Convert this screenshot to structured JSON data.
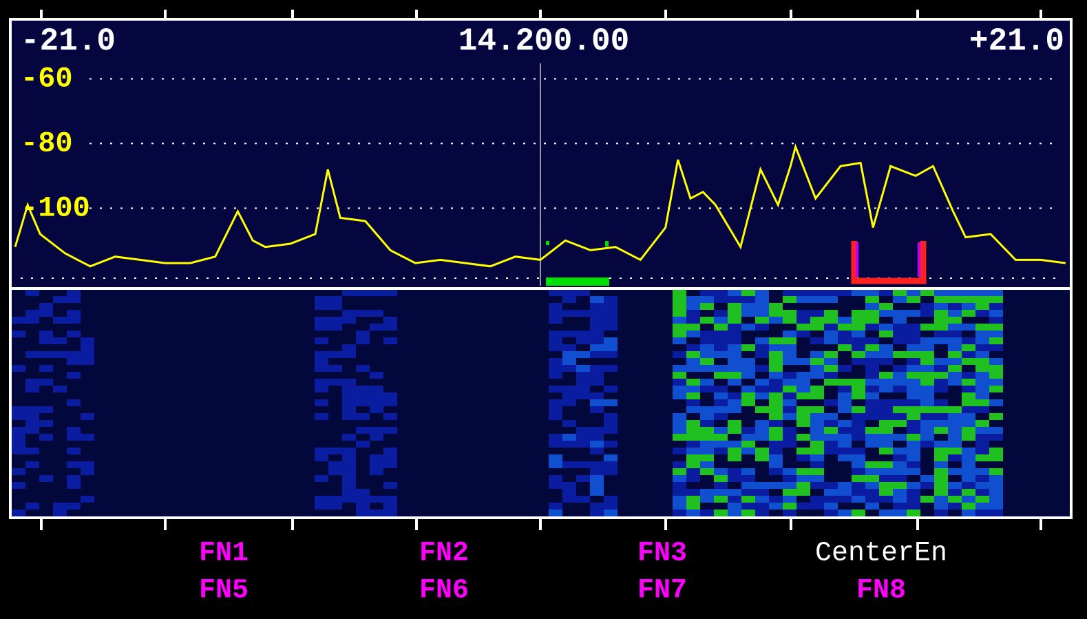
{
  "chart_data": {
    "type": "line",
    "center_frequency": "14.200.00",
    "x": [
      -21,
      -20.5,
      -20,
      -19,
      -18,
      -17,
      -16,
      -15,
      -14,
      -13,
      -12.1,
      -11.5,
      -11,
      -10,
      -9,
      -8.5,
      -8,
      -7,
      -6,
      -5,
      -4,
      -3,
      -2,
      -1,
      0,
      1,
      2,
      3,
      4,
      5,
      5.5,
      6,
      6.5,
      7,
      8,
      8.8,
      9.5,
      10,
      10.2,
      11,
      12,
      12.8,
      13.3,
      14,
      15,
      15.7,
      16.5,
      17,
      18,
      19,
      20,
      21
    ],
    "series": [
      {
        "color": "#ffff00",
        "values": [
          -112,
          -99,
          -108,
          -114,
          -118,
          -115,
          -116,
          -117,
          -117,
          -115,
          -101,
          -110,
          -112,
          -111,
          -108,
          -88,
          -103,
          -104,
          -113,
          -117,
          -116,
          -117,
          -118,
          -115,
          -116,
          -110,
          -113,
          -112,
          -116,
          -106,
          -85,
          -97,
          -95,
          -99,
          -112,
          -88,
          -99,
          -87,
          -81,
          -97,
          -87,
          -86,
          -106,
          -87,
          -90,
          -87,
          -101,
          -109,
          -108,
          -116,
          -116,
          -117
        ]
      }
    ],
    "xlim": [
      -21,
      21
    ],
    "xticks": [
      {
        "value": -21,
        "label": "-21.0"
      },
      {
        "value": 21,
        "label": "+21.0"
      }
    ],
    "ylim": [
      -124,
      -42
    ],
    "yticks": [
      -60,
      -80,
      -100
    ],
    "grid": true
  },
  "softkeys": [
    [
      "FN1",
      "FN2",
      "FN3",
      "CenterEn"
    ],
    [
      "FN5",
      "FN6",
      "FN7",
      "FN8"
    ]
  ]
}
